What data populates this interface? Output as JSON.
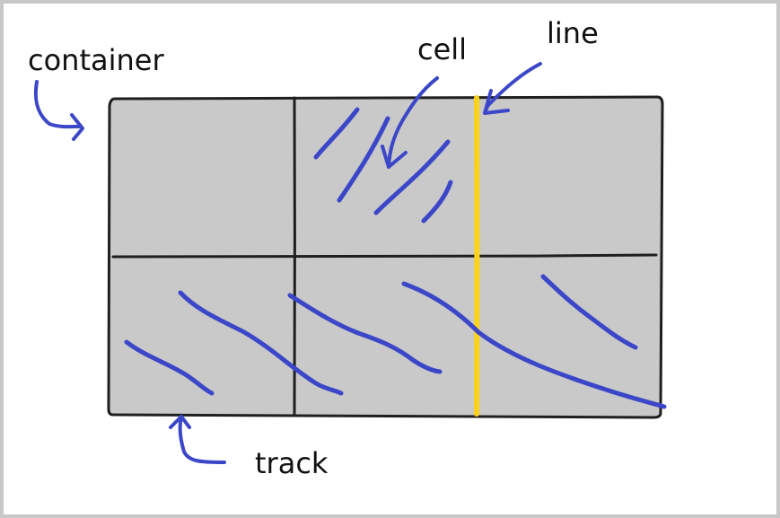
{
  "diagram": {
    "labels": {
      "container": "container",
      "cell": "cell",
      "line": "line",
      "track": "track"
    },
    "colors": {
      "background_frame": "#c8c8c8",
      "paper": "#ffffff",
      "grid_fill": "#c9c9c9",
      "grid_border": "#1f1f1f",
      "highlight_line": "#ffd21a",
      "annotation_ink": "#3b47c8"
    }
  }
}
